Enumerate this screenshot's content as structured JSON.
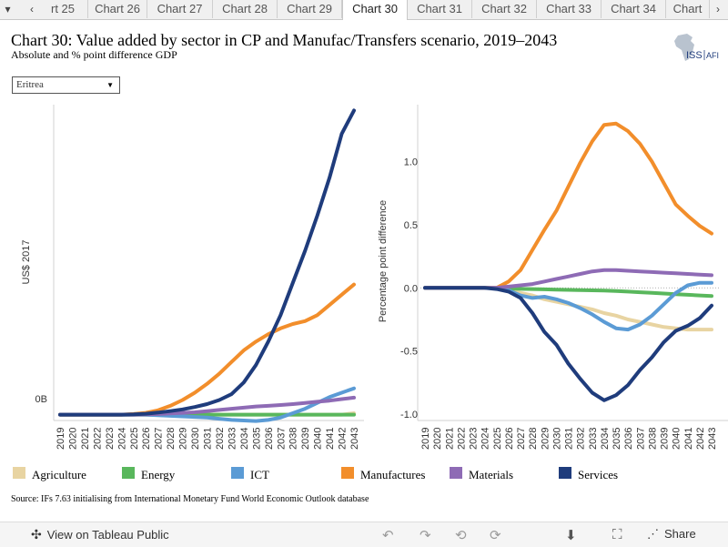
{
  "tabs": {
    "items": [
      "rt 25",
      "Chart 26",
      "Chart 27",
      "Chart 28",
      "Chart 29",
      "Chart 30",
      "Chart 31",
      "Chart 32",
      "Chart 33",
      "Chart 34",
      "Chart"
    ],
    "active_index": 5,
    "menu_icon": "chevron-down-icon",
    "prev_icon": "chevron-left-icon",
    "next_icon": "chevron-right-icon"
  },
  "header": {
    "title": "Chart 30: Value added by sector in CP and Manufac/Transfers scenario, 2019–2043",
    "subtitle": "Absolute and % point difference GDP",
    "logo_text": "ISS",
    "logo_text2": "AFI"
  },
  "filter": {
    "selected": "Eritrea"
  },
  "colors": {
    "Agriculture": "#e8d4a2",
    "Energy": "#59b75c",
    "ICT": "#5b9bd5",
    "Manufactures": "#f28e2b",
    "Materials": "#8e6bb5",
    "Services": "#1f3c7c"
  },
  "chart_data": [
    {
      "type": "line",
      "title": "",
      "xlabel": "",
      "ylabel": "US$ 2017",
      "y_tick_labels": [
        "0B"
      ],
      "x": [
        2019,
        2020,
        2021,
        2022,
        2023,
        2024,
        2025,
        2026,
        2027,
        2028,
        2029,
        2030,
        2031,
        2032,
        2033,
        2034,
        2035,
        2036,
        2037,
        2038,
        2039,
        2040,
        2041,
        2042,
        2043
      ],
      "x_tick_labels": [
        "2019",
        "2020",
        "2021",
        "2022",
        "2023",
        "2024",
        "2025",
        "2026",
        "2027",
        "2028",
        "2029",
        "2030",
        "2031",
        "2032",
        "2033",
        "2034",
        "2035",
        "2036",
        "2037",
        "2038",
        "2039",
        "2040",
        "2041",
        "2042",
        "2043"
      ],
      "ylim": [
        -0.2,
        10.6
      ],
      "series": [
        {
          "name": "Agriculture",
          "values": [
            0,
            0,
            0,
            0,
            0,
            0,
            0,
            0,
            0,
            0,
            0,
            0,
            0,
            0,
            0,
            0,
            0,
            0,
            0,
            0,
            0,
            0,
            0,
            0,
            0.05
          ]
        },
        {
          "name": "Energy",
          "values": [
            0,
            0,
            0,
            0,
            0,
            0,
            0,
            0,
            0,
            0,
            0,
            0,
            0,
            0,
            0,
            0,
            0,
            0,
            0,
            0,
            0,
            0,
            0,
            0,
            0
          ]
        },
        {
          "name": "ICT",
          "values": [
            0,
            0,
            0,
            0,
            0,
            0,
            0,
            0,
            -0.02,
            -0.04,
            -0.06,
            -0.08,
            -0.1,
            -0.14,
            -0.18,
            -0.2,
            -0.22,
            -0.18,
            -0.1,
            0.05,
            0.2,
            0.4,
            0.6,
            0.75,
            0.9
          ]
        },
        {
          "name": "Manufactures",
          "values": [
            0,
            0,
            0,
            0,
            0,
            0,
            0.02,
            0.06,
            0.15,
            0.3,
            0.5,
            0.75,
            1.05,
            1.4,
            1.8,
            2.2,
            2.5,
            2.75,
            2.95,
            3.1,
            3.2,
            3.4,
            3.75,
            4.1,
            4.45
          ]
        },
        {
          "name": "Materials",
          "values": [
            0,
            0,
            0,
            0,
            0,
            0,
            0,
            0.01,
            0.02,
            0.04,
            0.06,
            0.08,
            0.12,
            0.16,
            0.2,
            0.24,
            0.28,
            0.3,
            0.33,
            0.36,
            0.4,
            0.44,
            0.48,
            0.53,
            0.58
          ]
        },
        {
          "name": "Services",
          "values": [
            0,
            0,
            0,
            0,
            0,
            0,
            0.01,
            0.03,
            0.07,
            0.12,
            0.18,
            0.26,
            0.36,
            0.5,
            0.7,
            1.1,
            1.7,
            2.5,
            3.4,
            4.5,
            5.6,
            6.8,
            8.1,
            9.6,
            10.4
          ]
        }
      ]
    },
    {
      "type": "line",
      "title": "",
      "xlabel": "",
      "ylabel": "Percentage point difference",
      "y_ticks": [
        -1.0,
        -0.5,
        0.0,
        0.5,
        1.0
      ],
      "y_tick_labels": [
        "-1.0",
        "-0.5",
        "0.0",
        "0.5",
        "1.0"
      ],
      "x": [
        2019,
        2020,
        2021,
        2022,
        2023,
        2024,
        2025,
        2026,
        2027,
        2028,
        2029,
        2030,
        2031,
        2032,
        2033,
        2034,
        2035,
        2036,
        2037,
        2038,
        2039,
        2040,
        2041,
        2042,
        2043
      ],
      "x_tick_labels": [
        "2019",
        "2020",
        "2021",
        "2022",
        "2023",
        "2024",
        "2025",
        "2026",
        "2027",
        "2028",
        "2029",
        "2030",
        "2031",
        "2032",
        "2033",
        "2034",
        "2035",
        "2036",
        "2037",
        "2038",
        "2039",
        "2040",
        "2041",
        "2042",
        "2043"
      ],
      "ylim": [
        -1.05,
        1.45
      ],
      "series": [
        {
          "name": "Agriculture",
          "values": [
            0,
            0,
            0,
            0,
            0,
            0,
            -0.005,
            -0.02,
            -0.04,
            -0.06,
            -0.09,
            -0.11,
            -0.13,
            -0.15,
            -0.17,
            -0.2,
            -0.22,
            -0.25,
            -0.27,
            -0.29,
            -0.31,
            -0.32,
            -0.33,
            -0.33,
            -0.33
          ]
        },
        {
          "name": "Energy",
          "values": [
            0,
            0,
            0,
            0,
            0,
            0,
            -0.003,
            -0.005,
            -0.008,
            -0.01,
            -0.012,
            -0.014,
            -0.016,
            -0.018,
            -0.02,
            -0.022,
            -0.025,
            -0.03,
            -0.035,
            -0.04,
            -0.045,
            -0.05,
            -0.055,
            -0.06,
            -0.065
          ]
        },
        {
          "name": "ICT",
          "values": [
            0,
            0,
            0,
            0,
            0,
            0,
            0,
            -0.02,
            -0.06,
            -0.08,
            -0.07,
            -0.09,
            -0.12,
            -0.16,
            -0.21,
            -0.27,
            -0.32,
            -0.33,
            -0.29,
            -0.22,
            -0.13,
            -0.04,
            0.02,
            0.04,
            0.04
          ]
        },
        {
          "name": "Manufactures",
          "values": [
            0,
            0,
            0,
            0,
            0,
            0,
            0,
            0.05,
            0.14,
            0.3,
            0.46,
            0.61,
            0.8,
            0.99,
            1.16,
            1.29,
            1.3,
            1.24,
            1.14,
            1.0,
            0.83,
            0.66,
            0.57,
            0.49,
            0.43
          ]
        },
        {
          "name": "Materials",
          "values": [
            0,
            0,
            0,
            0,
            0,
            0,
            0,
            0.01,
            0.02,
            0.03,
            0.05,
            0.07,
            0.09,
            0.11,
            0.13,
            0.14,
            0.14,
            0.135,
            0.13,
            0.125,
            0.12,
            0.115,
            0.11,
            0.105,
            0.1
          ]
        },
        {
          "name": "Services",
          "values": [
            0,
            0,
            0,
            0,
            0,
            0,
            -0.01,
            -0.03,
            -0.08,
            -0.2,
            -0.35,
            -0.45,
            -0.6,
            -0.72,
            -0.83,
            -0.89,
            -0.85,
            -0.77,
            -0.65,
            -0.55,
            -0.43,
            -0.34,
            -0.3,
            -0.24,
            -0.14
          ]
        }
      ]
    }
  ],
  "legend": [
    {
      "name": "Agriculture",
      "label": "Agriculture"
    },
    {
      "name": "Energy",
      "label": "Energy"
    },
    {
      "name": "ICT",
      "label": "ICT"
    },
    {
      "name": "Manufactures",
      "label": "Manufactures"
    },
    {
      "name": "Materials",
      "label": "Materials"
    },
    {
      "name": "Services",
      "label": "Services"
    }
  ],
  "source": "Source: IFs 7.63 initialising from International Monetary Fund World Economic Outlook database",
  "footer": {
    "view_label": "View on Tableau Public",
    "share_label": "Share",
    "tableau_icon": "tableau-logo-icon",
    "undo_icon": "undo-icon",
    "redo_icon": "redo-icon",
    "revert_icon": "revert-icon",
    "refresh_icon": "refresh-icon",
    "download_icon": "download-icon",
    "fullscreen_icon": "fullscreen-icon",
    "share_icon": "share-icon"
  }
}
